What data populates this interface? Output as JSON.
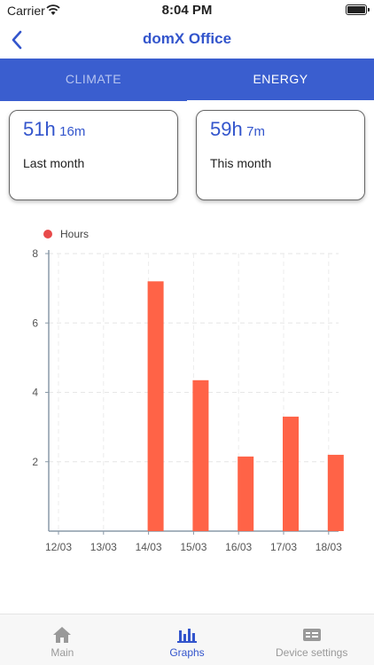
{
  "status_bar": {
    "carrier": "Carrier",
    "time": "8:04 PM"
  },
  "header": {
    "title": "domX Office"
  },
  "tabs": [
    {
      "label": "CLIMATE",
      "active": false
    },
    {
      "label": "ENERGY",
      "active": true
    }
  ],
  "summary_cards": [
    {
      "value_hours": "51h",
      "value_minutes": "16m",
      "label": "Last month"
    },
    {
      "value_hours": "59h",
      "value_minutes": "7m",
      "label": "This month"
    }
  ],
  "chart_data": {
    "type": "bar",
    "categories": [
      "12/03",
      "13/03",
      "14/03",
      "15/03",
      "16/03",
      "17/03",
      "18/03"
    ],
    "series": [
      {
        "name": "Hours",
        "values": [
          0,
          0,
          7.2,
          4.35,
          2.15,
          3.3,
          2.2
        ],
        "color": "#ff6347"
      }
    ],
    "ylim": [
      0,
      8
    ],
    "yticks": [
      2,
      4,
      6,
      8
    ],
    "grid": true,
    "legend": "top-left"
  },
  "bottom_nav": [
    {
      "label": "Main",
      "icon": "home-icon",
      "active": false
    },
    {
      "label": "Graphs",
      "icon": "bar-chart-icon",
      "active": true
    },
    {
      "label": "Device settings",
      "icon": "device-settings-icon",
      "active": false
    }
  ],
  "colors": {
    "accent": "#3355cc",
    "tab_bar": "#3a5ecf",
    "bar": "#ff6347",
    "legend_dot": "#e84a4a"
  }
}
